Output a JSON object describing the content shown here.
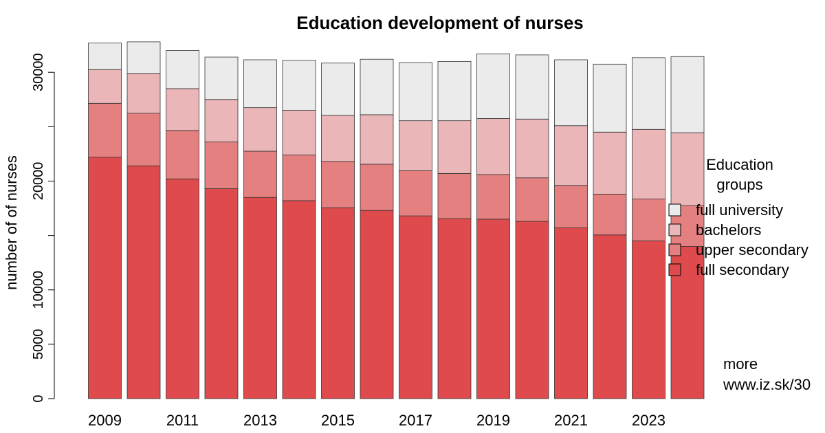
{
  "chart_data": {
    "type": "bar",
    "stacked": true,
    "title": "Education development of nurses",
    "xlabel": "",
    "ylabel": "number of of nurses",
    "ylim": [
      0,
      32000
    ],
    "yticks": [
      0,
      5000,
      10000,
      15000,
      20000,
      25000,
      30000
    ],
    "ytick_labels": [
      "0",
      "5000",
      "10000",
      "",
      "20000",
      "",
      "30000"
    ],
    "categories": [
      "2009",
      "2010",
      "2011",
      "2012",
      "2013",
      "2014",
      "2015",
      "2016",
      "2017",
      "2018",
      "2019",
      "2020",
      "2021",
      "2022",
      "2023",
      "2024"
    ],
    "xtick_labels": [
      "2009",
      "",
      "2011",
      "",
      "2013",
      "",
      "2015",
      "",
      "2017",
      "",
      "2019",
      "",
      "2021",
      "",
      "2023",
      ""
    ],
    "series": [
      {
        "name": "full secondary",
        "color": "#df4b4d",
        "values": [
          22200,
          21400,
          20200,
          19300,
          18500,
          18200,
          17550,
          17300,
          16800,
          16550,
          16500,
          16300,
          15700,
          15050,
          14500,
          14000
        ]
      },
      {
        "name": "upper secondary",
        "color": "#e58080",
        "values": [
          4950,
          4850,
          4450,
          4300,
          4250,
          4200,
          4250,
          4250,
          4150,
          4150,
          4100,
          4000,
          3900,
          3750,
          3850,
          3750
        ]
      },
      {
        "name": "bachelors",
        "color": "#ebb6b8",
        "values": [
          3100,
          3650,
          3850,
          3900,
          4000,
          4100,
          4250,
          4550,
          4600,
          4850,
          5150,
          5400,
          5500,
          5700,
          6400,
          6700
        ]
      },
      {
        "name": "full university",
        "color": "#ebebeb",
        "values": [
          2450,
          2900,
          3500,
          3900,
          4400,
          4600,
          4800,
          5100,
          5350,
          5450,
          5950,
          5900,
          6050,
          6250,
          6600,
          7000
        ]
      }
    ],
    "legend": {
      "title_line1": "Education",
      "title_line2": "groups",
      "placement": "right",
      "order": [
        "full university",
        "bachelors",
        "upper secondary",
        "full secondary"
      ]
    },
    "annotations": [
      "more",
      "www.iz.sk/30"
    ],
    "grid": false
  }
}
